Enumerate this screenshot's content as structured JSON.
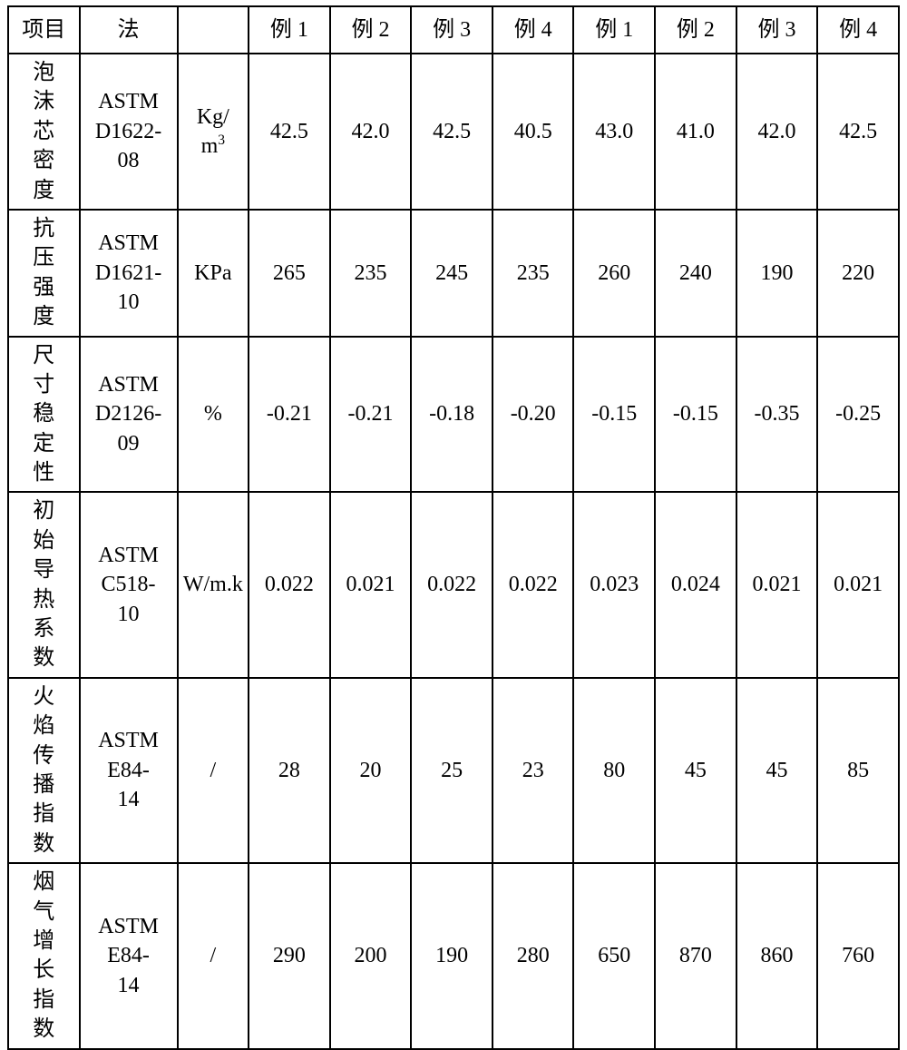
{
  "table": {
    "type": "table",
    "border_color": "#000000",
    "background_color": "#ffffff",
    "font_family": "SimSun",
    "header_fontsize": 24,
    "cell_fontsize": 24,
    "columns": {
      "c0": "项目",
      "c1": "法",
      "c2": "",
      "c3": "例 1",
      "c4": "例 2",
      "c5": "例 3",
      "c6": "例 4",
      "c7": "例 1",
      "c8": "例 2",
      "c9": "例 3",
      "c10": "例 4"
    },
    "rows": [
      {
        "project": "泡沫芯密度",
        "method": "ASTM D1622-08",
        "unit_html": "Kg/m<sup>3</sup>",
        "v": [
          "42.5",
          "42.0",
          "42.5",
          "40.5",
          "43.0",
          "41.0",
          "42.0",
          "42.5"
        ]
      },
      {
        "project": "抗压强度",
        "method": "ASTM D1621-10",
        "unit_html": "KPa",
        "v": [
          "265",
          "235",
          "245",
          "235",
          "260",
          "240",
          "190",
          "220"
        ]
      },
      {
        "project": "尺寸稳定性",
        "method": "ASTM D2126-09",
        "unit_html": "%",
        "v": [
          "-0.21",
          "-0.21",
          "-0.18",
          "-0.20",
          "-0.15",
          "-0.15",
          "-0.35",
          "-0.25"
        ]
      },
      {
        "project": "初始导热系数",
        "method": "ASTM C518-10",
        "unit_html": "W/m.k",
        "v": [
          "0.022",
          "0.021",
          "0.022",
          "0.022",
          "0.023",
          "0.024",
          "0.021",
          "0.021"
        ]
      },
      {
        "project": "火焰传播指数",
        "method": "ASTM E84-14",
        "unit_html": "/",
        "v": [
          "28",
          "20",
          "25",
          "23",
          "80",
          "45",
          "45",
          "85"
        ]
      },
      {
        "project": "烟气增长指数",
        "method": "ASTM E84-14",
        "unit_html": "/",
        "v": [
          "290",
          "200",
          "190",
          "280",
          "650",
          "870",
          "860",
          "760"
        ]
      }
    ]
  }
}
